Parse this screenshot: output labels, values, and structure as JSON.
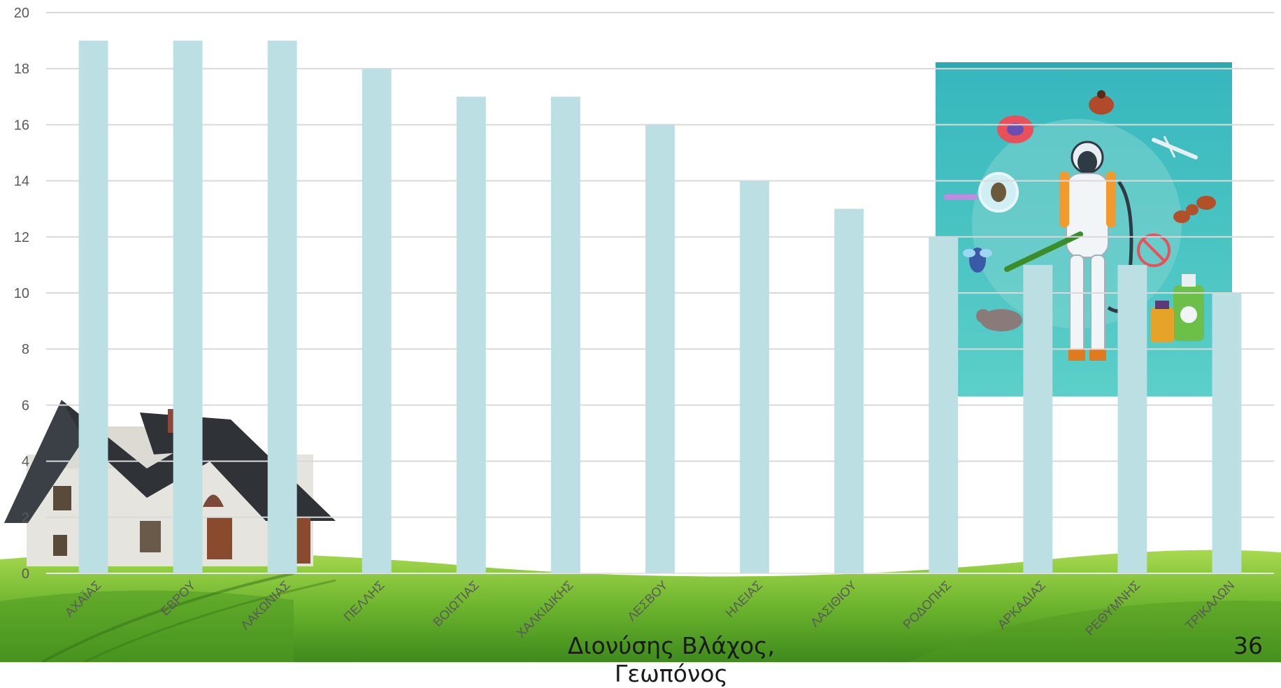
{
  "chart_data": {
    "type": "bar",
    "categories": [
      "ΑΧΑΪΑΣ",
      "ΕΒΡΟΥ",
      "ΛΑΚΩΝΙΑΣ",
      "ΠΕΛΛΗΣ",
      "ΒΟΙΩΤΙΑΣ",
      "ΧΑΛΚΙΔΙΚΗΣ",
      "ΛΕΣΒΟΥ",
      "ΗΛΕΙΑΣ",
      "ΛΑΣΙΘΙΟΥ",
      "ΡΟΔΟΠΗΣ",
      "ΑΡΚΑΔΙΑΣ",
      "ΡΕΘΥΜΝΗΣ",
      "ΤΡΙΚΑΛΩΝ"
    ],
    "values": [
      19,
      19,
      19,
      18,
      17,
      17,
      16,
      14,
      13,
      12,
      11,
      11,
      10
    ],
    "ylim": [
      0,
      20
    ],
    "yticks": [
      "0",
      "2",
      "4",
      "6",
      "8",
      "10",
      "12",
      "14",
      "16",
      "18",
      "20"
    ],
    "grid": true,
    "legend": "none"
  },
  "footer": {
    "author": "Διονύσης Βλάχος, Γεωπόνος",
    "slide_number": "36"
  },
  "colors": {
    "bar": "#BCDFE3",
    "grid": "#D9D9D9",
    "tick_label": "#595959",
    "grass_light": "#9BD14A",
    "grass_dark": "#3E8A1C",
    "poster_bg": "#3BBFC4"
  },
  "illustrations": [
    "house-icon",
    "pest-control-worker-icon",
    "grass-field-icon"
  ]
}
